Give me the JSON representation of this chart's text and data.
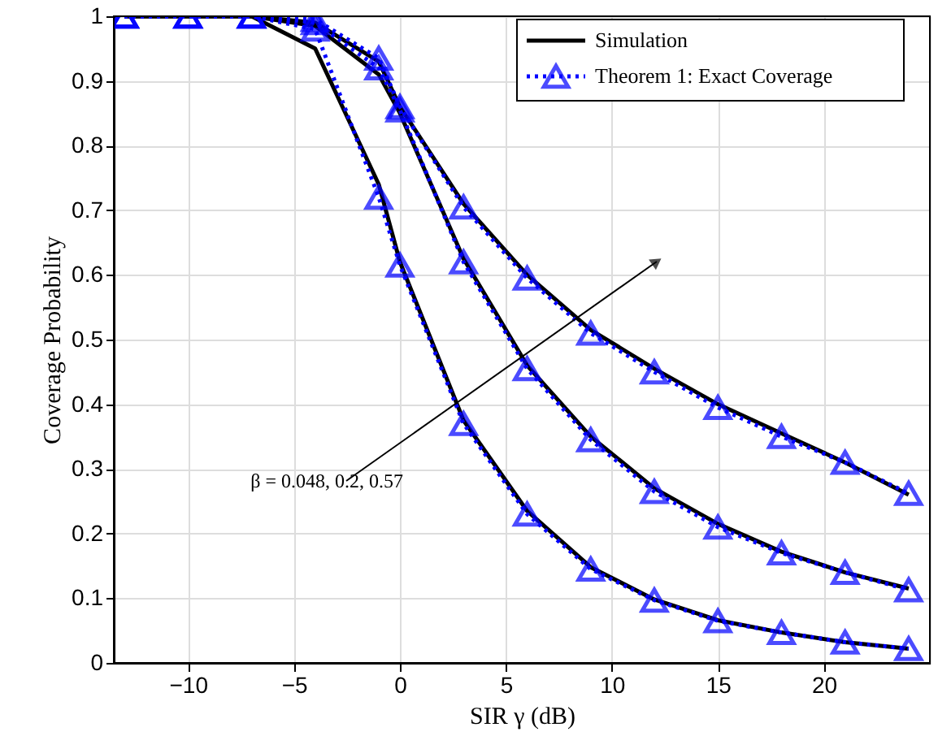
{
  "chart_data": {
    "type": "line",
    "xlabel": "SIR γ (dB)",
    "ylabel": "Coverage Probability",
    "xlim": [
      -13.5,
      25
    ],
    "xticks": [
      -10,
      -5,
      0,
      5,
      10,
      15,
      20
    ],
    "ylim": [
      0,
      1
    ],
    "yticks": [
      0,
      0.1,
      0.2,
      0.3,
      0.4,
      0.5,
      0.6,
      0.7,
      0.8,
      0.9,
      1
    ],
    "grid": true,
    "legend": "top right",
    "annotations": [
      "β = 0.048, 0.2, 0.57"
    ],
    "x": [
      -13,
      -10,
      -7,
      -4,
      -1,
      0,
      3,
      6,
      9,
      12,
      15,
      18,
      21,
      24
    ],
    "series": [
      {
        "name": "Simulation",
        "color": "#000000",
        "line_style": "solid",
        "marker": "none",
        "values": [
          1,
          1,
          1,
          0.95,
          0.74,
          0.62,
          0.375,
          0.235,
          0.148,
          0.098,
          0.066,
          0.047,
          0.032,
          0.022
        ]
      },
      {
        "color": "#000000",
        "line_style": "solid",
        "marker": "none",
        "values": [
          1,
          1,
          1,
          0.985,
          0.91,
          0.85,
          0.625,
          0.46,
          0.35,
          0.27,
          0.215,
          0.172,
          0.14,
          0.115
        ]
      },
      {
        "color": "#000000",
        "line_style": "solid",
        "marker": "none",
        "values": [
          1,
          1,
          1,
          0.99,
          0.93,
          0.86,
          0.71,
          0.6,
          0.515,
          0.455,
          0.4,
          0.355,
          0.31,
          0.26
        ]
      },
      {
        "name": "Theorem 1: Exact Coverage",
        "color": "#0000ff",
        "line_style": "dotted",
        "marker": "triangle",
        "values": [
          1,
          1,
          1,
          0.98,
          0.72,
          0.615,
          0.37,
          0.23,
          0.145,
          0.097,
          0.065,
          0.047,
          0.032,
          0.022
        ]
      },
      {
        "color": "#0000ff",
        "line_style": "dotted",
        "marker": "triangle",
        "values": [
          1,
          1,
          1,
          0.99,
          0.92,
          0.855,
          0.62,
          0.455,
          0.345,
          0.265,
          0.21,
          0.17,
          0.14,
          0.113
        ]
      },
      {
        "color": "#0000ff",
        "line_style": "dotted",
        "marker": "triangle",
        "values": [
          1,
          1,
          1,
          0.995,
          0.935,
          0.86,
          0.705,
          0.595,
          0.51,
          0.45,
          0.395,
          0.35,
          0.31,
          0.262
        ]
      }
    ]
  }
}
